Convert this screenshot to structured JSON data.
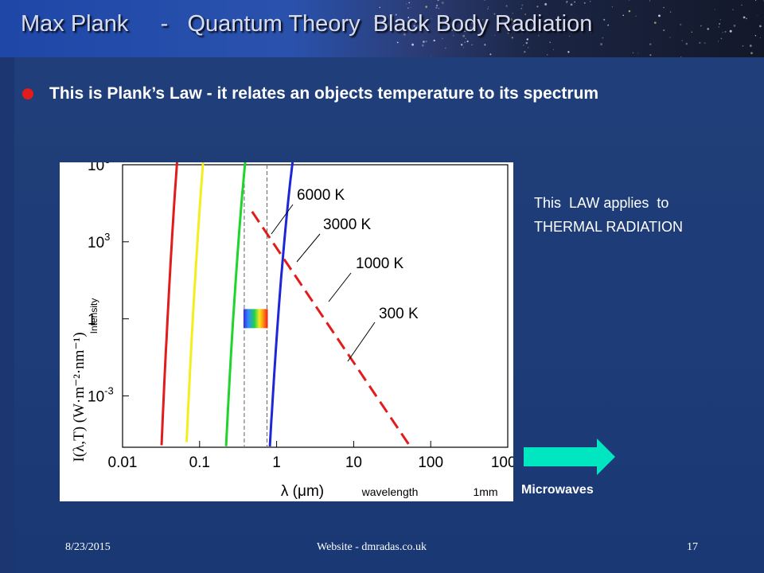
{
  "slide": {
    "title": "Max Plank     -   Quantum Theory  Black Body Radiation",
    "bullet": "This is Plank’s Law  -  it relates an objects temperature to its spectrum",
    "side_note_line1": "This  LAW applies  to",
    "side_note_line2": "THERMAL RADIATION",
    "arrow_label": "Microwaves",
    "footer_date": "8/23/2015",
    "footer_site": "Website -  dmradas.co.uk",
    "footer_page": "17"
  },
  "colors": {
    "bullet": "#e21b1b",
    "arrow": "#00e6c0",
    "curve_6000": "#e21b1b",
    "curve_3000": "#f5ee1e",
    "curve_1000": "#1fd42b",
    "curve_300": "#1d27d8",
    "wien_line": "#e21b1b"
  },
  "chart_data": {
    "type": "line",
    "xscale": "log",
    "yscale": "log",
    "xlim": [
      0.01,
      1000
    ],
    "ylim": [
      1e-05,
      1000000
    ],
    "xticks": [
      "0.01",
      "0.1",
      "1",
      "10",
      "100",
      "1000"
    ],
    "xtick_values": [
      0.01,
      0.1,
      1,
      10,
      100,
      1000
    ],
    "yticks": [
      {
        "base": "10",
        "exp": "6",
        "value": 1000000
      },
      {
        "base": "10",
        "exp": "3",
        "value": 1000
      },
      {
        "base": "1",
        "exp": "",
        "value": 1
      },
      {
        "base": "10",
        "exp": "-3",
        "value": 0.001
      }
    ],
    "xlabel": "λ (μm)",
    "ylabel": "I(λ,T) (W·m⁻²·nm⁻¹)",
    "ylabel_inner": "Intensity",
    "xlabel_extra": "wavelength",
    "xnote": "1mm",
    "grid": false,
    "series": [
      {
        "name": "6000 K",
        "temperature": 6000,
        "color": "#e21b1b",
        "peak_wavelength": 0.48
      },
      {
        "name": "3000 K",
        "temperature": 3000,
        "color": "#f5ee1e",
        "peak_wavelength": 0.97
      },
      {
        "name": "1000 K",
        "temperature": 1000,
        "color": "#1fd42b",
        "peak_wavelength": 2.9
      },
      {
        "name": "300 K",
        "temperature": 300,
        "color": "#1d27d8",
        "peak_wavelength": 9.7
      }
    ],
    "visible_band": [
      0.38,
      0.75
    ],
    "wien_line": {
      "x": [
        0.48,
        55
      ],
      "y": [
        15000,
        1e-05
      ]
    }
  }
}
